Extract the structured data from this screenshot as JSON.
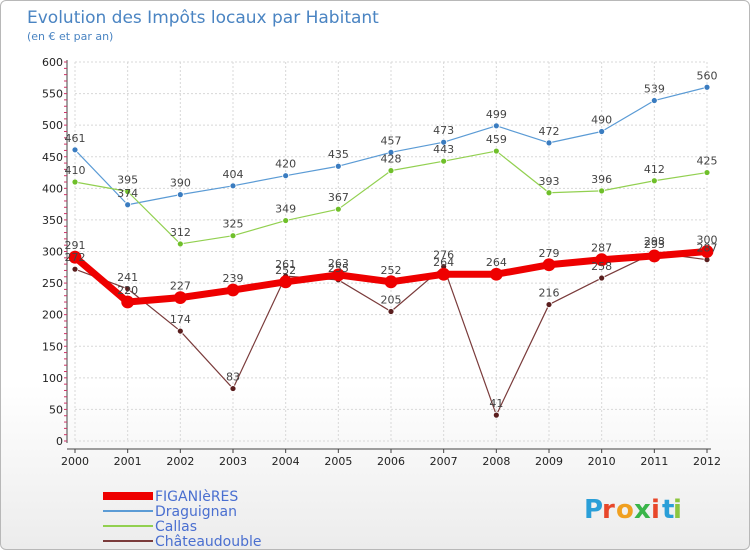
{
  "chart_data": {
    "type": "line",
    "title": "Evolution des Impôts locaux par Habitant",
    "subtitle": "(en € et par an)",
    "x": [
      "2000",
      "2001",
      "2002",
      "2003",
      "2004",
      "2005",
      "2006",
      "2007",
      "2008",
      "2009",
      "2010",
      "2011",
      "2012"
    ],
    "ylim": [
      0,
      600
    ],
    "yticks": [
      0,
      50,
      100,
      150,
      200,
      250,
      300,
      350,
      400,
      450,
      500,
      550,
      600
    ],
    "grid": true,
    "legend_position": "bottom-left",
    "series": [
      {
        "name": "Draguignan",
        "color": "#5b9bd5",
        "marker": "#3a7cc0",
        "width": 1.2,
        "values": [
          461,
          374,
          390,
          404,
          420,
          435,
          457,
          473,
          499,
          472,
          490,
          539,
          560
        ]
      },
      {
        "name": "Callas",
        "color": "#92d050",
        "marker": "#6fbf2a",
        "width": 1.2,
        "values": [
          410,
          395,
          312,
          325,
          349,
          367,
          428,
          443,
          459,
          393,
          396,
          412,
          425
        ]
      },
      {
        "name": "Châteaudouble",
        "color": "#7a3b3b",
        "marker": "#5a1e1e",
        "width": 1.2,
        "values": [
          272,
          241,
          174,
          83,
          261,
          255,
          205,
          276,
          41,
          216,
          258,
          298,
          287
        ]
      },
      {
        "name": "FIGANIèRES",
        "color": "#ee0000",
        "marker": "#ee0000",
        "width": 7,
        "values": [
          291,
          220,
          227,
          239,
          252,
          263,
          252,
          264,
          264,
          279,
          287,
          293,
          300
        ]
      }
    ],
    "legend_order": [
      "FIGANIèRES",
      "Draguignan",
      "Callas",
      "Châteaudouble"
    ]
  },
  "logo": {
    "letters": [
      "P",
      "r",
      "o",
      "x",
      "i",
      "t",
      "i"
    ],
    "colors": [
      "#2a9fd8",
      "#e8472a",
      "#f0a020",
      "#3ab54a",
      "#e8472a",
      "#2a9fd8",
      "#8cc63f"
    ]
  }
}
